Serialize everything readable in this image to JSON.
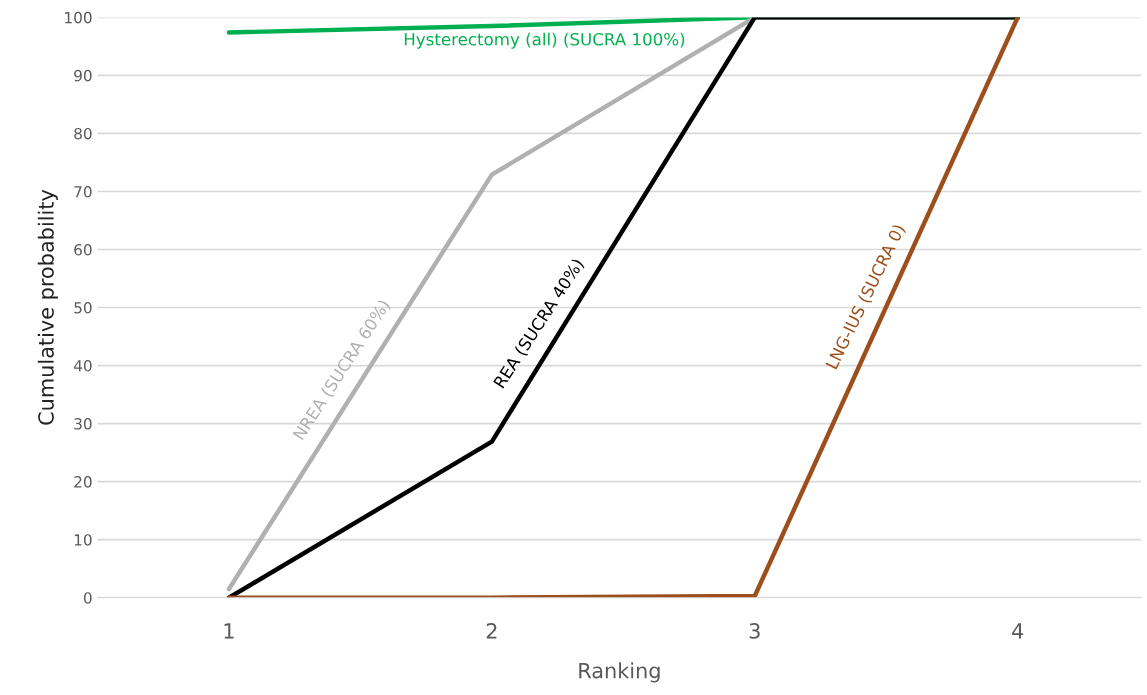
{
  "chart_data": {
    "type": "line",
    "xlabel": "Ranking",
    "ylabel": "Cumulative probability",
    "x": [
      1,
      2,
      3,
      4
    ],
    "series": [
      {
        "color": "#00b050",
        "values": [
          97.4,
          98.5,
          100,
          100
        ]
      },
      {
        "color": "#b0b0b0",
        "values": [
          1.5,
          72.9,
          100,
          100
        ]
      },
      {
        "color": "#000000",
        "values": [
          0,
          26.9,
          100,
          100
        ]
      },
      {
        "color": "#9c4f1c",
        "values": [
          0,
          0,
          0.3,
          100
        ]
      }
    ],
    "annotations": [
      {
        "text": "Hysterectomy (all) (SUCRA 100%)",
        "x": 2.2,
        "y": 98.8
      },
      {
        "text": "NREA (SUCRA 60%)",
        "x": 1.5,
        "y": 37.2
      },
      {
        "text": "REA (SUCRA 40%)",
        "x": 2.25,
        "y": 45.2
      },
      {
        "text": "LNG-IUS (SUCRA 0)",
        "x": 3.5,
        "y": 50.2
      }
    ],
    "xlim": [
      0.5,
      4.47
    ],
    "xticks": [
      1,
      2,
      3,
      4
    ],
    "ylim": [
      0,
      100
    ],
    "yticks": [
      0,
      10,
      20,
      30,
      40,
      50,
      60,
      70,
      80,
      90,
      100
    ],
    "grid": "y",
    "marker": "none",
    "line_style": "solid"
  }
}
